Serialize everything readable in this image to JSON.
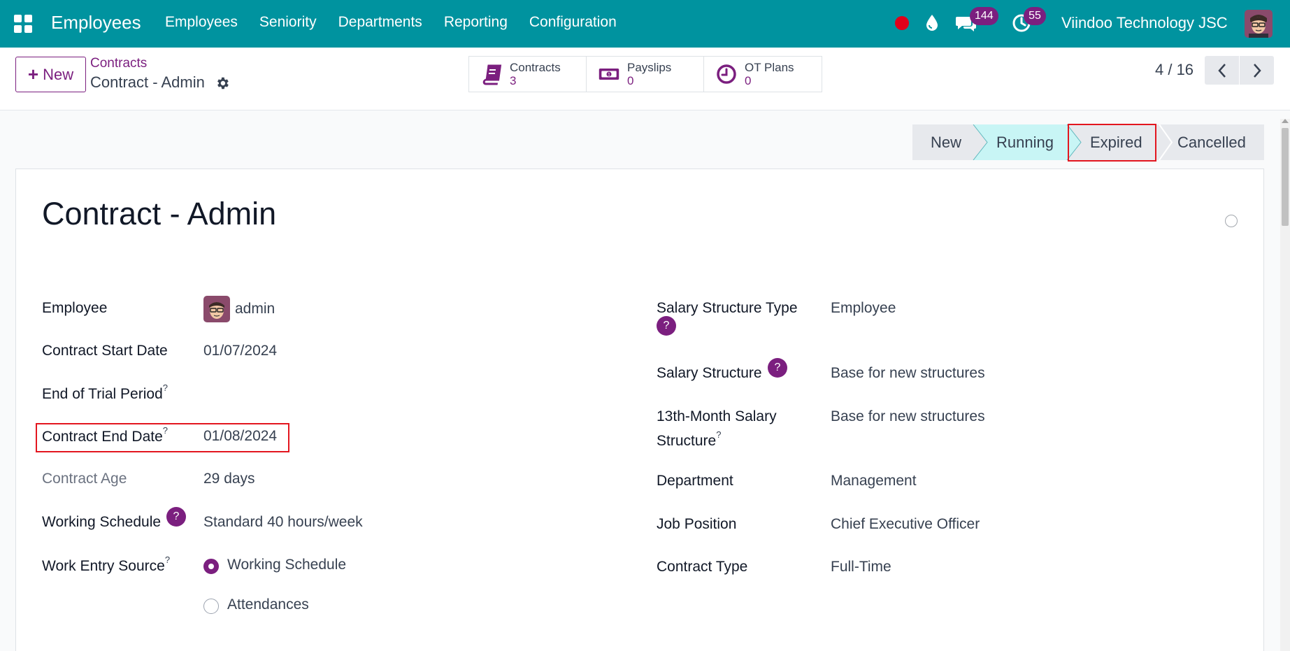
{
  "navbar": {
    "brand": "Employees",
    "menu": [
      "Employees",
      "Seniority",
      "Departments",
      "Reporting",
      "Configuration"
    ],
    "messages_count": "144",
    "activities_count": "55",
    "company": "Viindoo Technology JSC",
    "color": "#00939f"
  },
  "control": {
    "new_label": "New",
    "breadcrumb_parent": "Contracts",
    "breadcrumb_current": "Contract - Admin",
    "smart_buttons": [
      {
        "label": "Contracts",
        "value": "3",
        "icon": "book-icon"
      },
      {
        "label": "Payslips",
        "value": "0",
        "icon": "money-icon"
      },
      {
        "label": "OT Plans",
        "value": "0",
        "icon": "clock-icon"
      }
    ],
    "pager": "4 / 16"
  },
  "status": {
    "stages": [
      "New",
      "Running",
      "Expired",
      "Cancelled"
    ],
    "current": "Running"
  },
  "record": {
    "title": "Contract - Admin",
    "left_fields": {
      "employee_label": "Employee",
      "employee_value": "admin",
      "start_label": "Contract Start Date",
      "start_value": "01/07/2024",
      "trial_label": "End of Trial Period",
      "end_label": "Contract End Date",
      "end_value": "01/08/2024",
      "age_label": "Contract Age",
      "age_value": "29 days",
      "schedule_label": "Working Schedule",
      "schedule_value": "Standard 40 hours/week",
      "source_label": "Work Entry Source",
      "source_options": [
        "Working Schedule",
        "Attendances"
      ],
      "source_selected": "Working Schedule"
    },
    "right_fields": {
      "struct_type_label": "Salary Structure Type",
      "struct_type_value": "Employee",
      "struct_label": "Salary Structure",
      "struct_value": "Base for new structures",
      "month13_label_1": "13th-Month Salary",
      "month13_label_2": "Structure",
      "month13_value": "Base for new structures",
      "department_label": "Department",
      "department_value": "Management",
      "job_label": "Job Position",
      "job_value": "Chief Executive Officer",
      "type_label": "Contract Type",
      "type_value": "Full-Time"
    },
    "help_symbol": "?"
  },
  "colors": {
    "accent": "#7b1f7f",
    "highlight": "#e3161f",
    "running_stage": "#c8f5f5"
  }
}
